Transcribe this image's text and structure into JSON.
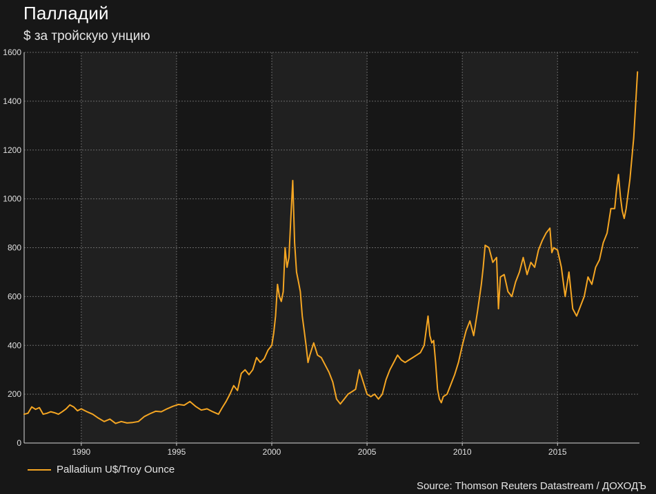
{
  "colors": {
    "background": "#171717",
    "plot_band_dark": "#171717",
    "plot_band_light": "#202020",
    "line": "#f5a623",
    "grid": "#6a6a6a"
  },
  "chart_data": {
    "type": "line",
    "title": "Палладий",
    "subtitle": "$ за тройскую унцию",
    "xlim": [
      1987.0,
      2019.3
    ],
    "ylim": [
      0,
      1600
    ],
    "x_ticks": [
      1990,
      1995,
      2000,
      2005,
      2010,
      2015
    ],
    "x_tick_labels": [
      "1990",
      "1995",
      "2000",
      "2005",
      "2010",
      "2015"
    ],
    "y_ticks": [
      0,
      200,
      400,
      600,
      800,
      1000,
      1200,
      1400,
      1600
    ],
    "y_tick_labels": [
      "0",
      "200",
      "400",
      "600",
      "800",
      "1000",
      "1200",
      "1400",
      "1600"
    ],
    "grid": true,
    "legend_position": "bottom-left",
    "series": [
      {
        "name": "Palladium U$/Troy Ounce",
        "color": "#f5a623",
        "x": [
          1987.0,
          1987.2,
          1987.4,
          1987.6,
          1987.8,
          1988.0,
          1988.2,
          1988.4,
          1988.6,
          1988.8,
          1989.0,
          1989.2,
          1989.4,
          1989.6,
          1989.8,
          1990.0,
          1990.3,
          1990.6,
          1990.9,
          1991.2,
          1991.5,
          1991.8,
          1992.1,
          1992.4,
          1992.7,
          1993.0,
          1993.3,
          1993.6,
          1993.9,
          1994.2,
          1994.5,
          1994.8,
          1995.1,
          1995.4,
          1995.7,
          1996.0,
          1996.3,
          1996.6,
          1996.9,
          1997.2,
          1997.4,
          1997.6,
          1997.8,
          1998.0,
          1998.2,
          1998.4,
          1998.6,
          1998.8,
          1999.0,
          1999.2,
          1999.4,
          1999.6,
          1999.8,
          2000.0,
          2000.1,
          2000.2,
          2000.3,
          2000.4,
          2000.5,
          2000.6,
          2000.7,
          2000.8,
          2000.9,
          2001.0,
          2001.1,
          2001.2,
          2001.3,
          2001.4,
          2001.5,
          2001.6,
          2001.7,
          2001.8,
          2001.9,
          2002.0,
          2002.2,
          2002.4,
          2002.6,
          2002.8,
          2003.0,
          2003.2,
          2003.4,
          2003.6,
          2003.8,
          2004.0,
          2004.2,
          2004.4,
          2004.6,
          2004.8,
          2005.0,
          2005.2,
          2005.4,
          2005.6,
          2005.8,
          2006.0,
          2006.2,
          2006.4,
          2006.6,
          2006.8,
          2007.0,
          2007.2,
          2007.4,
          2007.6,
          2007.8,
          2008.0,
          2008.1,
          2008.2,
          2008.3,
          2008.4,
          2008.5,
          2008.6,
          2008.7,
          2008.8,
          2008.9,
          2009.0,
          2009.2,
          2009.4,
          2009.6,
          2009.8,
          2010.0,
          2010.2,
          2010.4,
          2010.6,
          2010.8,
          2011.0,
          2011.1,
          2011.2,
          2011.4,
          2011.6,
          2011.8,
          2011.9,
          2012.0,
          2012.2,
          2012.4,
          2012.6,
          2012.8,
          2013.0,
          2013.2,
          2013.4,
          2013.6,
          2013.8,
          2014.0,
          2014.2,
          2014.4,
          2014.6,
          2014.7,
          2014.8,
          2015.0,
          2015.2,
          2015.4,
          2015.6,
          2015.8,
          2016.0,
          2016.2,
          2016.4,
          2016.6,
          2016.8,
          2017.0,
          2017.2,
          2017.4,
          2017.6,
          2017.8,
          2018.0,
          2018.1,
          2018.2,
          2018.3,
          2018.4,
          2018.5,
          2018.6,
          2018.8,
          2019.0,
          2019.2
        ],
        "y": [
          118,
          122,
          148,
          138,
          145,
          118,
          122,
          128,
          124,
          118,
          128,
          140,
          156,
          148,
          132,
          140,
          128,
          118,
          102,
          88,
          98,
          80,
          88,
          82,
          84,
          88,
          108,
          120,
          130,
          128,
          140,
          150,
          158,
          155,
          170,
          150,
          135,
          140,
          128,
          118,
          145,
          170,
          200,
          235,
          215,
          285,
          300,
          280,
          300,
          350,
          330,
          345,
          380,
          400,
          450,
          520,
          650,
          600,
          580,
          620,
          800,
          720,
          760,
          920,
          1075,
          820,
          700,
          660,
          620,
          520,
          460,
          400,
          330,
          360,
          410,
          360,
          350,
          320,
          290,
          250,
          180,
          160,
          180,
          200,
          210,
          220,
          300,
          250,
          200,
          190,
          200,
          180,
          200,
          260,
          300,
          330,
          360,
          340,
          330,
          340,
          350,
          360,
          370,
          400,
          460,
          520,
          440,
          410,
          420,
          330,
          220,
          180,
          165,
          190,
          200,
          240,
          280,
          330,
          400,
          460,
          500,
          440,
          540,
          650,
          720,
          810,
          800,
          740,
          760,
          550,
          680,
          690,
          620,
          600,
          660,
          700,
          760,
          690,
          740,
          720,
          790,
          830,
          860,
          880,
          780,
          800,
          790,
          720,
          600,
          700,
          550,
          520,
          560,
          600,
          680,
          650,
          720,
          750,
          820,
          860,
          960,
          960,
          1040,
          1100,
          1010,
          950,
          920,
          960,
          1080,
          1250,
          1520
        ]
      }
    ],
    "source": "Source: Thomson Reuters Datastream / ДОХОДЪ"
  }
}
